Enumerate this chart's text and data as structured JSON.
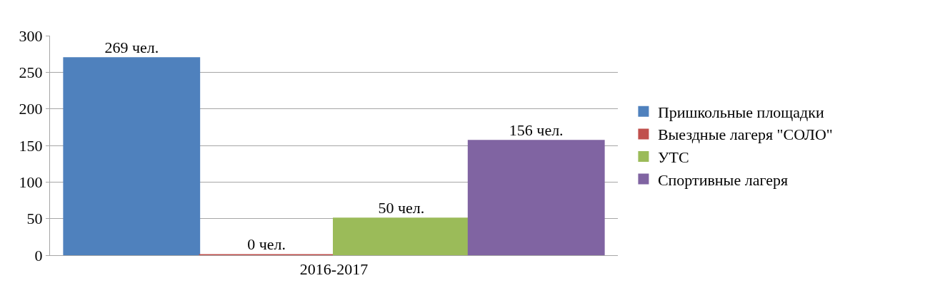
{
  "chart_data": {
    "type": "bar",
    "categories": [
      "2016-2017"
    ],
    "series": [
      {
        "name": "Пришкольные площадки",
        "color": "#4f81bd",
        "values": [
          269
        ],
        "value_labels": [
          "269 чел."
        ]
      },
      {
        "name": "Выездные лагеря \"СОЛО\"",
        "color": "#c0504d",
        "values": [
          0
        ],
        "value_labels": [
          "0 чел."
        ]
      },
      {
        "name": "УТС",
        "color": "#9bbb59",
        "values": [
          50
        ],
        "value_labels": [
          "50 чел."
        ]
      },
      {
        "name": "Спортивные лагеря",
        "color": "#8064a2",
        "values": [
          156
        ],
        "value_labels": [
          "156 чел."
        ]
      }
    ],
    "ylim": [
      0,
      300
    ],
    "yticks": [
      0,
      50,
      100,
      150,
      200,
      250,
      300
    ],
    "grid": "y",
    "legend": "right"
  }
}
